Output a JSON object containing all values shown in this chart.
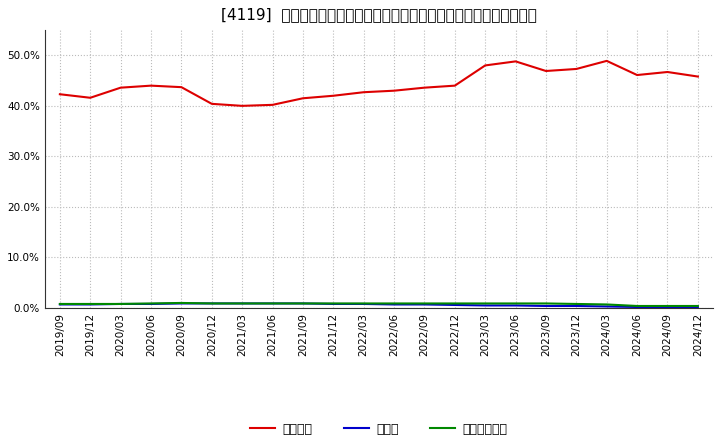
{
  "title": "[4119]  自己資本、のれん、繰延税金資産の総資産に対する比率の推移",
  "x_labels": [
    "2019/09",
    "2019/12",
    "2020/03",
    "2020/06",
    "2020/09",
    "2020/12",
    "2021/03",
    "2021/06",
    "2021/09",
    "2021/12",
    "2022/03",
    "2022/06",
    "2022/09",
    "2022/12",
    "2023/03",
    "2023/06",
    "2023/09",
    "2023/12",
    "2024/03",
    "2024/06",
    "2024/09",
    "2024/12"
  ],
  "jikoshihon": [
    0.423,
    0.416,
    0.436,
    0.44,
    0.437,
    0.404,
    0.4,
    0.402,
    0.415,
    0.42,
    0.427,
    0.43,
    0.436,
    0.44,
    0.48,
    0.488,
    0.469,
    0.473,
    0.489,
    0.461,
    0.467,
    0.458
  ],
  "noren": [
    0.007,
    0.007,
    0.008,
    0.008,
    0.009,
    0.009,
    0.009,
    0.009,
    0.009,
    0.008,
    0.008,
    0.007,
    0.007,
    0.006,
    0.005,
    0.005,
    0.004,
    0.004,
    0.003,
    0.002,
    0.002,
    0.002
  ],
  "kuenzeichisan": [
    0.008,
    0.008,
    0.008,
    0.009,
    0.01,
    0.009,
    0.009,
    0.009,
    0.009,
    0.009,
    0.009,
    0.009,
    0.009,
    0.009,
    0.009,
    0.009,
    0.009,
    0.008,
    0.007,
    0.004,
    0.004,
    0.004
  ],
  "jikoshihon_color": "#dd0000",
  "noren_color": "#0000cc",
  "kuenzeichisan_color": "#008800",
  "background_color": "#ffffff",
  "grid_color": "#bbbbbb",
  "ylim": [
    0.0,
    0.55
  ],
  "yticks": [
    0.0,
    0.1,
    0.2,
    0.3,
    0.4,
    0.5
  ],
  "legend_labels": [
    "自己資本",
    "のれん",
    "繰延税金資産"
  ],
  "title_fontsize": 11,
  "tick_fontsize": 7.5,
  "legend_fontsize": 9
}
